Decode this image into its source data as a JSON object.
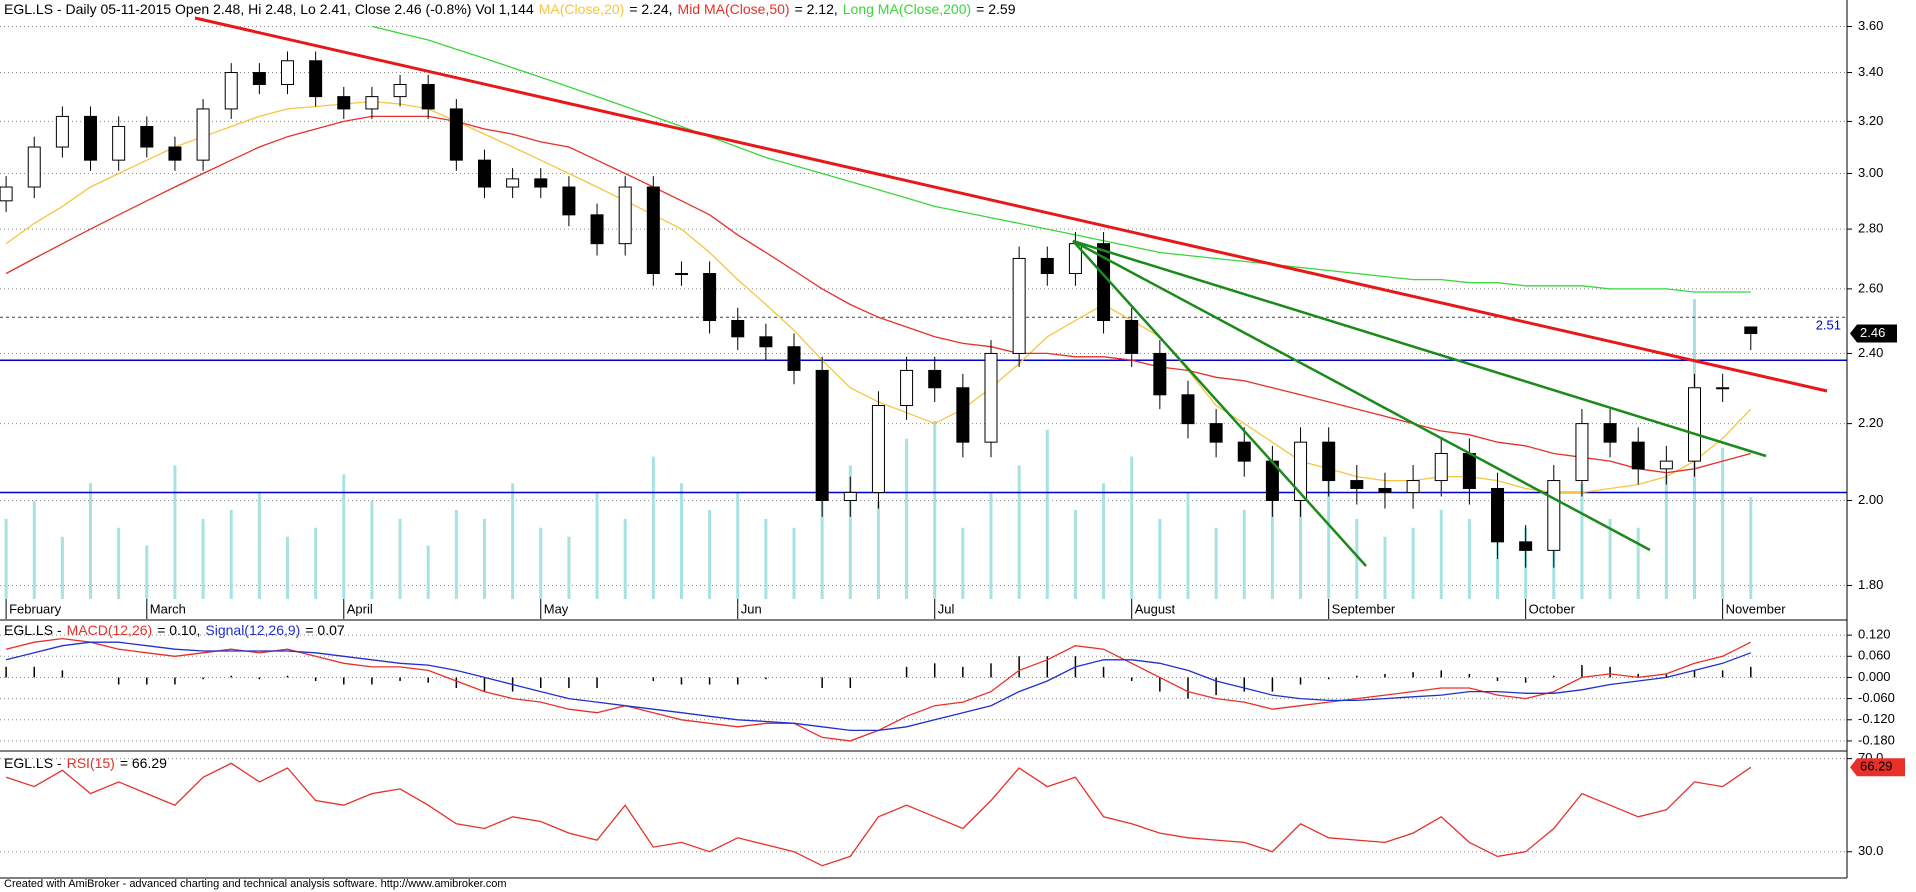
{
  "chart_data": [
    {
      "type": "candlestick",
      "title": "EGL.LS - Daily 05-11-2015 Open 2.48, Hi 2.48, Lo 2.41, Close 2.46 (-0.8%) Vol 1,144",
      "categories": [
        "February",
        null,
        null,
        null,
        null,
        "March",
        null,
        null,
        null,
        null,
        null,
        null,
        "April",
        null,
        null,
        null,
        null,
        null,
        null,
        "May",
        null,
        null,
        null,
        null,
        null,
        null,
        "Jun",
        null,
        null,
        null,
        null,
        null,
        null,
        "Jul",
        null,
        null,
        null,
        null,
        null,
        null,
        "August",
        null,
        null,
        null,
        null,
        null,
        null,
        "September",
        null,
        null,
        null,
        null,
        null,
        null,
        "October",
        null,
        null,
        null,
        null,
        null,
        null,
        "November",
        null
      ],
      "open": [
        2.9,
        2.95,
        3.1,
        3.22,
        3.05,
        3.18,
        3.1,
        3.05,
        3.25,
        3.4,
        3.35,
        3.45,
        3.3,
        3.25,
        3.3,
        3.35,
        3.25,
        3.05,
        2.95,
        2.98,
        2.95,
        2.85,
        2.75,
        2.95,
        2.65,
        2.65,
        2.5,
        2.45,
        2.42,
        2.35,
        2.0,
        2.02,
        2.25,
        2.35,
        2.3,
        2.15,
        2.4,
        2.7,
        2.65,
        2.75,
        2.5,
        2.4,
        2.28,
        2.2,
        2.15,
        2.1,
        2.0,
        2.15,
        2.05,
        2.03,
        2.02,
        2.05,
        2.12,
        2.03,
        1.9,
        1.88,
        2.05,
        2.2,
        2.15,
        2.08,
        2.1,
        2.3,
        2.48
      ],
      "high": [
        2.99,
        3.14,
        3.26,
        3.26,
        3.22,
        3.22,
        3.14,
        3.29,
        3.44,
        3.44,
        3.49,
        3.49,
        3.34,
        3.34,
        3.39,
        3.39,
        3.29,
        3.09,
        3.02,
        3.02,
        2.99,
        2.89,
        2.99,
        2.99,
        2.69,
        2.69,
        2.54,
        2.49,
        2.46,
        2.39,
        2.06,
        2.29,
        2.39,
        2.39,
        2.34,
        2.44,
        2.74,
        2.74,
        2.79,
        2.79,
        2.54,
        2.44,
        2.32,
        2.24,
        2.19,
        2.14,
        2.19,
        2.19,
        2.09,
        2.07,
        2.09,
        2.16,
        2.16,
        2.07,
        1.94,
        2.09,
        2.24,
        2.24,
        2.19,
        2.14,
        2.34,
        2.34,
        2.48
      ],
      "low": [
        2.86,
        2.91,
        3.06,
        3.01,
        3.01,
        3.06,
        3.01,
        3.01,
        3.21,
        3.31,
        3.31,
        3.26,
        3.21,
        3.21,
        3.26,
        3.21,
        3.01,
        2.91,
        2.91,
        2.91,
        2.81,
        2.71,
        2.71,
        2.61,
        2.61,
        2.46,
        2.41,
        2.38,
        2.31,
        1.96,
        1.96,
        1.98,
        2.21,
        2.26,
        2.11,
        2.11,
        2.36,
        2.61,
        2.61,
        2.46,
        2.36,
        2.24,
        2.16,
        2.11,
        2.06,
        1.96,
        1.96,
        2.01,
        1.99,
        1.98,
        1.98,
        2.01,
        1.99,
        1.86,
        1.84,
        1.84,
        2.01,
        2.11,
        2.04,
        2.04,
        2.06,
        2.26,
        2.41
      ],
      "close": [
        2.95,
        3.1,
        3.22,
        3.05,
        3.18,
        3.1,
        3.05,
        3.25,
        3.4,
        3.35,
        3.45,
        3.3,
        3.25,
        3.3,
        3.35,
        3.25,
        3.05,
        2.95,
        2.98,
        2.95,
        2.85,
        2.75,
        2.95,
        2.65,
        2.65,
        2.5,
        2.45,
        2.42,
        2.35,
        2.0,
        2.02,
        2.25,
        2.35,
        2.3,
        2.15,
        2.4,
        2.7,
        2.65,
        2.75,
        2.5,
        2.4,
        2.28,
        2.2,
        2.15,
        2.1,
        2.0,
        2.15,
        2.05,
        2.03,
        2.02,
        2.05,
        2.12,
        2.03,
        1.9,
        1.88,
        2.05,
        2.2,
        2.15,
        2.08,
        2.1,
        2.3,
        2.3,
        2.46
      ],
      "volume": [
        900,
        1100,
        700,
        1300,
        800,
        600,
        1500,
        900,
        1000,
        1200,
        700,
        800,
        1400,
        1100,
        900,
        600,
        1000,
        900,
        1300,
        800,
        700,
        1200,
        900,
        1600,
        1300,
        1000,
        1200,
        900,
        800,
        2400,
        1500,
        1100,
        1800,
        2000,
        800,
        1200,
        1500,
        1900,
        1000,
        1300,
        1600,
        900,
        1200,
        800,
        1000,
        1400,
        1100,
        1700,
        900,
        700,
        800,
        1000,
        900,
        1200,
        800,
        1100,
        1300,
        900,
        800,
        1400,
        3370,
        1700,
        1144
      ],
      "volume_color": "#a6e2e2",
      "series": [
        {
          "name": "MA(Close,20)",
          "color": "#f5c542",
          "value_label": "= 2.24,",
          "values": [
            2.75,
            2.82,
            2.88,
            2.95,
            3.0,
            3.05,
            3.1,
            3.14,
            3.18,
            3.22,
            3.25,
            3.26,
            3.27,
            3.28,
            3.27,
            3.25,
            3.2,
            3.15,
            3.1,
            3.05,
            3.0,
            2.95,
            2.9,
            2.85,
            2.8,
            2.72,
            2.63,
            2.55,
            2.47,
            2.38,
            2.3,
            2.26,
            2.23,
            2.2,
            2.24,
            2.3,
            2.37,
            2.45,
            2.5,
            2.55,
            2.5,
            2.45,
            2.35,
            2.25,
            2.2,
            2.15,
            2.1,
            2.08,
            2.06,
            2.05,
            2.05,
            2.06,
            2.06,
            2.05,
            2.03,
            2.02,
            2.02,
            2.03,
            2.04,
            2.06,
            2.1,
            2.16,
            2.24
          ]
        },
        {
          "name": "Mid MA(Close,50)",
          "color": "#e8302a",
          "value_label": "= 2.12,",
          "values": [
            2.65,
            2.7,
            2.75,
            2.8,
            2.85,
            2.9,
            2.95,
            3.0,
            3.05,
            3.1,
            3.14,
            3.17,
            3.2,
            3.22,
            3.22,
            3.22,
            3.2,
            3.17,
            3.15,
            3.12,
            3.1,
            3.05,
            3.0,
            2.95,
            2.9,
            2.85,
            2.78,
            2.72,
            2.66,
            2.6,
            2.55,
            2.51,
            2.48,
            2.45,
            2.43,
            2.42,
            2.4,
            2.4,
            2.39,
            2.39,
            2.38,
            2.36,
            2.35,
            2.33,
            2.32,
            2.3,
            2.28,
            2.26,
            2.24,
            2.22,
            2.2,
            2.18,
            2.17,
            2.15,
            2.14,
            2.12,
            2.11,
            2.1,
            2.08,
            2.07,
            2.08,
            2.1,
            2.12
          ]
        },
        {
          "name": "Long MA(Close,200)",
          "color": "#3ad63a",
          "value_label": "= 2.59",
          "values": [
            null,
            null,
            null,
            null,
            null,
            null,
            null,
            null,
            null,
            null,
            null,
            null,
            null,
            3.6,
            3.57,
            3.54,
            3.5,
            3.46,
            3.42,
            3.38,
            3.34,
            3.3,
            3.26,
            3.22,
            3.18,
            3.14,
            3.1,
            3.06,
            3.03,
            3.0,
            2.97,
            2.94,
            2.91,
            2.88,
            2.86,
            2.84,
            2.82,
            2.8,
            2.78,
            2.76,
            2.74,
            2.72,
            2.71,
            2.7,
            2.69,
            2.68,
            2.67,
            2.66,
            2.65,
            2.64,
            2.63,
            2.63,
            2.62,
            2.62,
            2.61,
            2.61,
            2.61,
            2.6,
            2.6,
            2.6,
            2.59,
            2.59,
            2.59
          ]
        }
      ],
      "hlines": [
        2.38,
        2.02
      ],
      "hline_color": "#0000cc",
      "ref_line": 2.51,
      "log_scale": true,
      "grid": true,
      "ylim": [
        1.77,
        3.72
      ],
      "yticks": [
        {
          "value": 1.8,
          "label": "1.80"
        },
        {
          "value": 2.0,
          "label": "2.00"
        },
        {
          "value": 2.2,
          "label": "2.20"
        },
        {
          "value": 2.4,
          "label": "2.40"
        },
        {
          "value": 2.6,
          "label": "2.60"
        },
        {
          "value": 2.8,
          "label": "2.80"
        },
        {
          "value": 3.0,
          "label": "3.00"
        },
        {
          "value": 3.2,
          "label": "3.20"
        },
        {
          "value": 3.4,
          "label": "3.40"
        },
        {
          "value": 3.6,
          "label": "3.60"
        }
      ]
    },
    {
      "type": "macd",
      "title": "EGL.LS -",
      "series": [
        {
          "name": "MACD(12,26)",
          "color": "#e8302a",
          "value_label": "= 0.10,",
          "values": [
            0.08,
            0.1,
            0.11,
            0.1,
            0.08,
            0.07,
            0.06,
            0.07,
            0.08,
            0.07,
            0.08,
            0.06,
            0.04,
            0.03,
            0.03,
            0.02,
            -0.01,
            -0.04,
            -0.06,
            -0.07,
            -0.09,
            -0.1,
            -0.08,
            -0.1,
            -0.12,
            -0.13,
            -0.14,
            -0.13,
            -0.13,
            -0.17,
            -0.18,
            -0.15,
            -0.11,
            -0.08,
            -0.07,
            -0.04,
            0.02,
            0.05,
            0.09,
            0.08,
            0.04,
            0.0,
            -0.04,
            -0.06,
            -0.07,
            -0.09,
            -0.08,
            -0.07,
            -0.06,
            -0.05,
            -0.04,
            -0.03,
            -0.03,
            -0.05,
            -0.06,
            -0.04,
            0.0,
            0.01,
            0.0,
            0.01,
            0.04,
            0.06,
            0.1
          ]
        },
        {
          "name": "Signal(12,26,9)",
          "color": "#2030d0",
          "value_label": "= 0.07",
          "values": [
            0.05,
            0.07,
            0.09,
            0.1,
            0.1,
            0.09,
            0.08,
            0.075,
            0.075,
            0.075,
            0.075,
            0.07,
            0.06,
            0.05,
            0.04,
            0.035,
            0.02,
            0.0,
            -0.02,
            -0.04,
            -0.06,
            -0.07,
            -0.08,
            -0.09,
            -0.1,
            -0.11,
            -0.12,
            -0.125,
            -0.13,
            -0.14,
            -0.15,
            -0.15,
            -0.14,
            -0.12,
            -0.1,
            -0.08,
            -0.04,
            -0.01,
            0.03,
            0.05,
            0.05,
            0.04,
            0.02,
            -0.01,
            -0.03,
            -0.05,
            -0.06,
            -0.065,
            -0.065,
            -0.06,
            -0.055,
            -0.05,
            -0.04,
            -0.04,
            -0.045,
            -0.045,
            -0.035,
            -0.02,
            -0.01,
            0.0,
            0.02,
            0.04,
            0.07
          ]
        }
      ],
      "histogram": {
        "color": "#000000",
        "values": [
          0.03,
          0.03,
          0.02,
          0.0,
          -0.02,
          -0.02,
          -0.02,
          -0.005,
          0.005,
          -0.005,
          0.005,
          -0.01,
          -0.02,
          -0.02,
          -0.01,
          -0.015,
          -0.03,
          -0.04,
          -0.04,
          -0.03,
          -0.03,
          -0.03,
          0.0,
          -0.01,
          -0.02,
          -0.02,
          -0.02,
          -0.005,
          0.0,
          -0.03,
          -0.03,
          0.0,
          0.03,
          0.04,
          0.03,
          0.04,
          0.06,
          0.06,
          0.06,
          0.03,
          -0.01,
          -0.04,
          -0.06,
          -0.05,
          -0.04,
          -0.04,
          -0.02,
          -0.005,
          0.005,
          0.01,
          0.015,
          0.02,
          0.01,
          -0.01,
          -0.015,
          0.005,
          0.035,
          0.03,
          0.01,
          0.01,
          0.02,
          0.02,
          0.03
        ]
      },
      "grid": true,
      "ylim": [
        -0.2,
        0.16
      ],
      "yticks": [
        {
          "value": -0.18,
          "label": "-0.180"
        },
        {
          "value": -0.12,
          "label": "-0.120"
        },
        {
          "value": -0.06,
          "label": "-0.060"
        },
        {
          "value": 0,
          "label": "0.000"
        },
        {
          "value": 0.06,
          "label": "0.060"
        },
        {
          "value": 0.12,
          "label": "0.120"
        }
      ]
    },
    {
      "type": "line",
      "title": "EGL.LS -",
      "series": [
        {
          "name": "RSI(15)",
          "color": "#e8302a",
          "value_label": "= 66.29",
          "values": [
            62,
            58,
            65,
            55,
            60,
            55,
            50,
            62,
            68,
            60,
            66,
            52,
            50,
            55,
            57,
            50,
            42,
            40,
            45,
            43,
            38,
            35,
            50,
            32,
            34,
            30,
            36,
            33,
            30,
            24,
            28,
            45,
            50,
            45,
            40,
            52,
            66,
            58,
            62,
            45,
            42,
            38,
            36,
            35,
            34,
            30,
            42,
            36,
            35,
            34,
            38,
            45,
            34,
            28,
            30,
            40,
            55,
            50,
            45,
            48,
            60,
            58,
            66.29
          ]
        }
      ],
      "grid": true,
      "ylim": [
        20,
        72
      ],
      "yticks": [
        {
          "value": 30,
          "label": "30.0"
        },
        {
          "value": 70,
          "label": "70.0"
        }
      ]
    }
  ],
  "footer": "Created with AmiBroker - advanced charting and technical analysis software. http://www.amibroker.com"
}
